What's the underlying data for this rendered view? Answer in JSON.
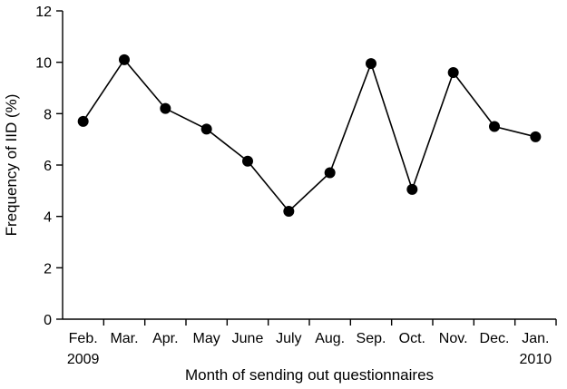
{
  "chart_data": {
    "type": "line",
    "title": "",
    "xlabel": "Month of sending out questionnaires",
    "ylabel": "Frequency of IID (%)",
    "ylim": [
      0,
      12
    ],
    "yticks": [
      0,
      2,
      4,
      6,
      8,
      10,
      12
    ],
    "grid": false,
    "legend": "none",
    "categories": [
      "Feb.",
      "Mar.",
      "Apr.",
      "May",
      "June",
      "July",
      "Aug.",
      "Sep.",
      "Oct.",
      "Nov.",
      "Dec.",
      "Jan."
    ],
    "category_sublabels": [
      "2009",
      "",
      "",
      "",
      "",
      "",
      "",
      "",
      "",
      "",
      "",
      "2010"
    ],
    "series": [
      {
        "values": [
          7.7,
          10.1,
          8.2,
          7.4,
          6.15,
          4.2,
          5.7,
          9.95,
          5.05,
          9.6,
          7.5,
          7.1
        ]
      }
    ],
    "colors": {
      "line": "#000000",
      "marker": "#000000"
    }
  }
}
